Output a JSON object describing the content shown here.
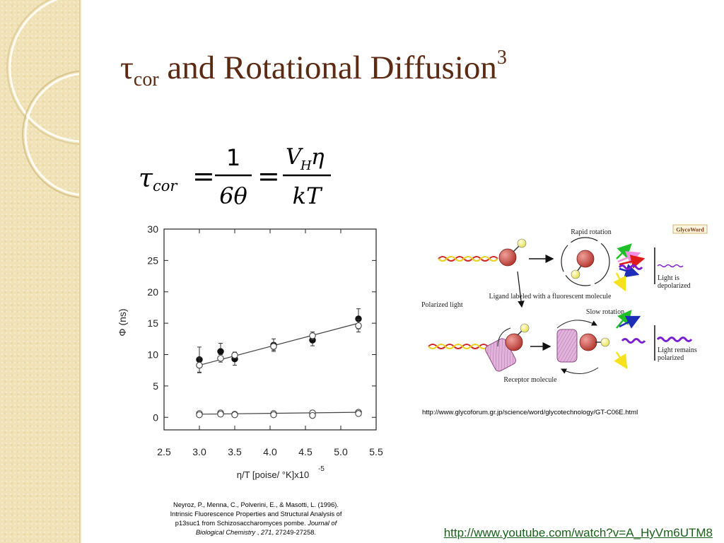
{
  "slide": {
    "title_symbol": "τ",
    "title_subscript": "cor",
    "title_text": " and Rotational Diffusion",
    "title_superscript": "3"
  },
  "equation": {
    "lhs_symbol": "τ",
    "lhs_subscript": "cor",
    "equals": "=",
    "frac1_num": "1",
    "frac1_den": "6θ",
    "frac2_num_v": "V",
    "frac2_num_sub": "H",
    "frac2_num_eta": "η",
    "frac2_den": "kT"
  },
  "chart_data": {
    "type": "scatter",
    "ylabel": "Φ (ns)",
    "xlabel": "η/T  [poise/ °K]x10",
    "xlabel_exponent": "-5",
    "xlim": [
      2.5,
      5.5
    ],
    "ylim": [
      -2,
      30
    ],
    "x_ticks": [
      "2.5",
      "3.0",
      "3.5",
      "4.0",
      "4.5",
      "5.0",
      "5.5"
    ],
    "y_ticks": [
      "0",
      "5",
      "10",
      "15",
      "20",
      "25",
      "30"
    ],
    "series": [
      {
        "marker": "filled-circle",
        "points": [
          {
            "x": 3.0,
            "y": 9.2,
            "err": 2.0
          },
          {
            "x": 3.3,
            "y": 10.5,
            "err": 1.3
          },
          {
            "x": 3.5,
            "y": 9.3,
            "err": 1.0
          },
          {
            "x": 4.05,
            "y": 11.5,
            "err": 1.0
          },
          {
            "x": 4.6,
            "y": 12.3,
            "err": 0.9
          },
          {
            "x": 5.25,
            "y": 15.7,
            "err": 1.6
          }
        ]
      },
      {
        "marker": "open-circle",
        "points": [
          {
            "x": 3.0,
            "y": 8.3,
            "err": 1.2
          },
          {
            "x": 3.3,
            "y": 9.4,
            "err": 0.6
          },
          {
            "x": 3.5,
            "y": 9.9,
            "err": 0.5
          },
          {
            "x": 4.05,
            "y": 11.3,
            "err": 0.6
          },
          {
            "x": 4.6,
            "y": 13.0,
            "err": 0.6
          },
          {
            "x": 5.25,
            "y": 14.6,
            "err": 1.0
          }
        ]
      },
      {
        "marker": "open-circle",
        "points": [
          {
            "x": 3.0,
            "y": 0.6
          },
          {
            "x": 3.0,
            "y": 0.4
          },
          {
            "x": 3.3,
            "y": 0.7
          },
          {
            "x": 3.3,
            "y": 0.5
          },
          {
            "x": 3.5,
            "y": 0.5
          },
          {
            "x": 3.5,
            "y": 0.4
          },
          {
            "x": 4.05,
            "y": 0.6
          },
          {
            "x": 4.05,
            "y": 0.4
          },
          {
            "x": 4.6,
            "y": 0.7
          },
          {
            "x": 4.6,
            "y": 0.3
          },
          {
            "x": 5.25,
            "y": 0.8
          },
          {
            "x": 5.25,
            "y": 0.6
          }
        ]
      }
    ],
    "fit_lines": [
      {
        "x": [
          3.0,
          5.25
        ],
        "y": [
          8.3,
          15.0
        ]
      },
      {
        "x": [
          3.0,
          5.25
        ],
        "y": [
          0.5,
          0.8
        ]
      }
    ],
    "grid": false
  },
  "schematic": {
    "labels": {
      "rapid_rotation": "Rapid rotation",
      "logo": "GlycoWord",
      "light_depolarized_1": "Light is",
      "light_depolarized_2": "depolarized",
      "ligand": "Ligand labeled with a fluorescent molecule",
      "polarized_light": "Polarized light",
      "slow_rotation": "Slow rotation",
      "light_remains_1": "Light remains",
      "light_remains_2": "polarized",
      "receptor": "Receptor molecule"
    },
    "colors": {
      "ligand_ball": "#c4453e",
      "fluor_ball": "#f1ee6a",
      "receptor": "#d9a3d1",
      "wave_purple": "#7b1fd0",
      "arrow_red": "#e01b1b",
      "arrow_green": "#1fbf2a",
      "arrow_pink": "#f28ee0",
      "arrow_blue": "#1c2db8",
      "arrow_yellow": "#f5e11c",
      "helix_red": "#d22525",
      "helix_yellow": "#e6d21a"
    },
    "source_url": "http://www.glycoforum.gr.jp/science/word/glycotechnology/GT-C06E.html"
  },
  "citation": {
    "line1": "Neyroz, P., Menna, C., Polverini, E., & Masotti, L. (1996).",
    "line2": "Intrinsic Fluorescence Properties and Structural Analysis of",
    "line3_pre": "p13suc1 from Schizosaccharomyces pombe. ",
    "line3_journal": "Journal of",
    "line4_journal": "Biological Chemistry",
    "line4_sep": " , ",
    "line4_volume": "271",
    "line4_pages": ", 27249-27258."
  },
  "video_link": "http://www.youtube.com/watch?v=A_HyVm6UTM8",
  "theme": {
    "title_color": "#5b2a13",
    "sidebar_color": "#f0e2b6",
    "link_color": "#1a5e1a"
  }
}
